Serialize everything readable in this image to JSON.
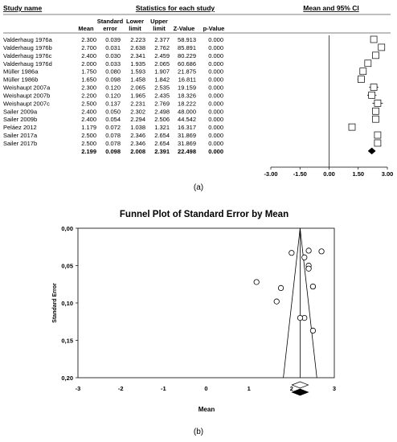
{
  "chart_data": [
    {
      "type": "table",
      "panel_label": "(a)",
      "headers": {
        "study": "Study name",
        "stats_title": "Statistics for each study",
        "mean": "Mean",
        "se": [
          "Standard",
          "error"
        ],
        "lower": [
          "Lower",
          "limit"
        ],
        "upper": [
          "Upper",
          "limit"
        ],
        "z": "Z-Value",
        "p": "p-Value",
        "plot_title": "Mean and 95% CI"
      },
      "rows": [
        {
          "study": "Valderhaug 1976a",
          "mean": "2.300",
          "se": "0.039",
          "lower": "2.223",
          "upper": "2.377",
          "z": "58.913",
          "p": "0.000"
        },
        {
          "study": "Valderhaug 1976b",
          "mean": "2.700",
          "se": "0.031",
          "lower": "2.638",
          "upper": "2.762",
          "z": "85.891",
          "p": "0.000"
        },
        {
          "study": "Valderhaug 1976c",
          "mean": "2.400",
          "se": "0.030",
          "lower": "2.341",
          "upper": "2.459",
          "z": "80.229",
          "p": "0.000"
        },
        {
          "study": "Valderhaug 1976d",
          "mean": "2.000",
          "se": "0.033",
          "lower": "1.935",
          "upper": "2.065",
          "z": "60.686",
          "p": "0.000"
        },
        {
          "study": "Müller 1986a",
          "mean": "1.750",
          "se": "0.080",
          "lower": "1.593",
          "upper": "1.907",
          "z": "21.875",
          "p": "0.000"
        },
        {
          "study": "Müller 1986b",
          "mean": "1.650",
          "se": "0.098",
          "lower": "1.458",
          "upper": "1.842",
          "z": "16.811",
          "p": "0.000"
        },
        {
          "study": "Weishaupt 2007a",
          "mean": "2.300",
          "se": "0.120",
          "lower": "2.065",
          "upper": "2.535",
          "z": "19.159",
          "p": "0.000"
        },
        {
          "study": "Weishaupt 2007b",
          "mean": "2.200",
          "se": "0.120",
          "lower": "1.965",
          "upper": "2.435",
          "z": "18.326",
          "p": "0.000"
        },
        {
          "study": "Weishaupt 2007c",
          "mean": "2.500",
          "se": "0.137",
          "lower": "2.231",
          "upper": "2.769",
          "z": "18.222",
          "p": "0.000"
        },
        {
          "study": "Sailer 2009a",
          "mean": "2.400",
          "se": "0.050",
          "lower": "2.302",
          "upper": "2.498",
          "z": "48.000",
          "p": "0.000"
        },
        {
          "study": "Sailer 2009b",
          "mean": "2.400",
          "se": "0.054",
          "lower": "2.294",
          "upper": "2.506",
          "z": "44.542",
          "p": "0.000"
        },
        {
          "study": "Peláez 2012",
          "mean": "1.179",
          "se": "0.072",
          "lower": "1.038",
          "upper": "1.321",
          "z": "16.317",
          "p": "0.000"
        },
        {
          "study": "Sailer 2017a",
          "mean": "2.500",
          "se": "0.078",
          "lower": "2.346",
          "upper": "2.654",
          "z": "31.869",
          "p": "0.000"
        },
        {
          "study": "Sailer 2017b",
          "mean": "2.500",
          "se": "0.078",
          "lower": "2.346",
          "upper": "2.654",
          "z": "31.869",
          "p": "0.000"
        }
      ],
      "summary": {
        "mean": "2.199",
        "se": "0.098",
        "lower": "2.008",
        "upper": "2.391",
        "z": "22.498",
        "p": "0.000"
      },
      "xlim": [
        -3,
        3
      ],
      "xticks": [
        "-3.00",
        "-1.50",
        "0.00",
        "1.50",
        "3.00"
      ]
    },
    {
      "type": "scatter",
      "panel_label": "(b)",
      "title": "Funnel Plot of Standard Error by Mean",
      "xlabel": "Mean",
      "ylabel": "Standard Error",
      "xlim": [
        -3,
        3
      ],
      "ylim": [
        0,
        0.2
      ],
      "y_inverted": true,
      "xticks": [
        "-3",
        "-2",
        "-1",
        "0",
        "1",
        "2",
        "3"
      ],
      "yticks": [
        "0,00",
        "0,05",
        "0,10",
        "0,15",
        "0,20"
      ],
      "points": [
        {
          "x": 2.3,
          "y": 0.039
        },
        {
          "x": 2.7,
          "y": 0.031
        },
        {
          "x": 2.4,
          "y": 0.03
        },
        {
          "x": 2.0,
          "y": 0.033
        },
        {
          "x": 1.75,
          "y": 0.08
        },
        {
          "x": 1.65,
          "y": 0.098
        },
        {
          "x": 2.3,
          "y": 0.12
        },
        {
          "x": 2.2,
          "y": 0.12
        },
        {
          "x": 2.5,
          "y": 0.137
        },
        {
          "x": 2.4,
          "y": 0.05
        },
        {
          "x": 2.4,
          "y": 0.054
        },
        {
          "x": 1.179,
          "y": 0.072
        },
        {
          "x": 2.5,
          "y": 0.078
        },
        {
          "x": 2.5,
          "y": 0.078
        }
      ],
      "pooled_mean": 2.199,
      "summary_diamonds": [
        {
          "center": 2.199,
          "lower": 2.008,
          "upper": 2.391,
          "fill": "white"
        },
        {
          "center": 2.199,
          "lower": 2.008,
          "upper": 2.391,
          "fill": "black"
        }
      ]
    }
  ]
}
